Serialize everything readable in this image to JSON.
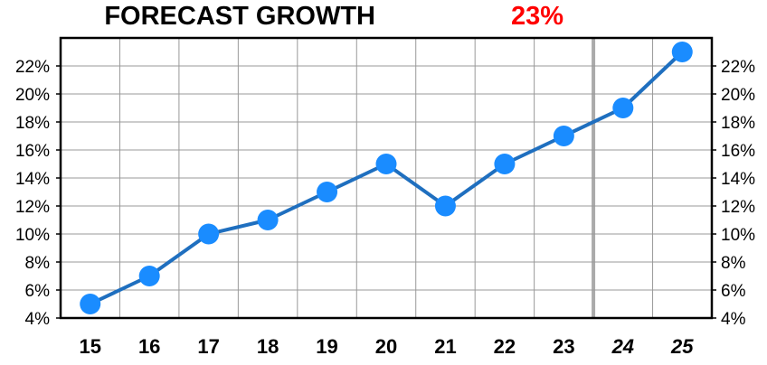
{
  "title": {
    "text": "FORECAST GROWTH",
    "value": "23%",
    "value_color": "#ff0000"
  },
  "colors": {
    "line": "#1f6fbf",
    "marker": "#1a8cff",
    "grid": "#999999",
    "forecast_divider": "#aaaaaa",
    "frame": "#000000"
  },
  "chart_data": {
    "type": "line",
    "categories": [
      "15",
      "16",
      "17",
      "18",
      "19",
      "20",
      "21",
      "22",
      "23",
      "24",
      "25"
    ],
    "forecast_categories": [
      "24",
      "25"
    ],
    "series": [
      {
        "values": [
          5,
          7,
          10,
          11,
          13,
          15,
          12,
          15,
          17,
          19,
          23
        ]
      }
    ],
    "y_ticks": [
      "4%",
      "6%",
      "8%",
      "10%",
      "12%",
      "14%",
      "16%",
      "18%",
      "20%",
      "22%"
    ],
    "ylim": [
      4,
      24
    ],
    "y_axis_both_sides": true,
    "grid": true
  }
}
